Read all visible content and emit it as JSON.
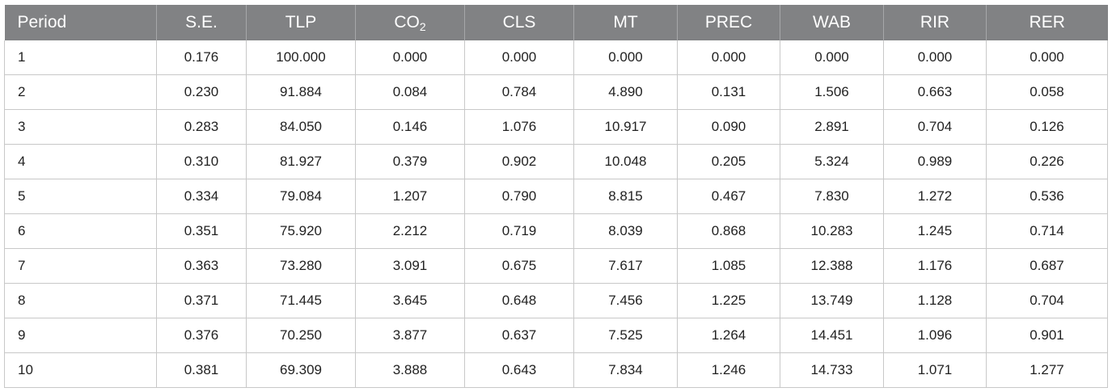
{
  "table": {
    "headers": [
      {
        "main": "Period",
        "sub": ""
      },
      {
        "main": "S.E.",
        "sub": ""
      },
      {
        "main": "TLP",
        "sub": ""
      },
      {
        "main": "CO",
        "sub": "2"
      },
      {
        "main": "CLS",
        "sub": ""
      },
      {
        "main": "MT",
        "sub": ""
      },
      {
        "main": "PREC",
        "sub": ""
      },
      {
        "main": "WAB",
        "sub": ""
      },
      {
        "main": "RIR",
        "sub": ""
      },
      {
        "main": "RER",
        "sub": ""
      }
    ],
    "rows": [
      [
        "1",
        "0.176",
        "100.000",
        "0.000",
        "0.000",
        "0.000",
        "0.000",
        "0.000",
        "0.000",
        "0.000"
      ],
      [
        "2",
        "0.230",
        "91.884",
        "0.084",
        "0.784",
        "4.890",
        "0.131",
        "1.506",
        "0.663",
        "0.058"
      ],
      [
        "3",
        "0.283",
        "84.050",
        "0.146",
        "1.076",
        "10.917",
        "0.090",
        "2.891",
        "0.704",
        "0.126"
      ],
      [
        "4",
        "0.310",
        "81.927",
        "0.379",
        "0.902",
        "10.048",
        "0.205",
        "5.324",
        "0.989",
        "0.226"
      ],
      [
        "5",
        "0.334",
        "79.084",
        "1.207",
        "0.790",
        "8.815",
        "0.467",
        "7.830",
        "1.272",
        "0.536"
      ],
      [
        "6",
        "0.351",
        "75.920",
        "2.212",
        "0.719",
        "8.039",
        "0.868",
        "10.283",
        "1.245",
        "0.714"
      ],
      [
        "7",
        "0.363",
        "73.280",
        "3.091",
        "0.675",
        "7.617",
        "1.085",
        "12.388",
        "1.176",
        "0.687"
      ],
      [
        "8",
        "0.371",
        "71.445",
        "3.645",
        "0.648",
        "7.456",
        "1.225",
        "13.749",
        "1.128",
        "0.704"
      ],
      [
        "9",
        "0.376",
        "70.250",
        "3.877",
        "0.637",
        "7.525",
        "1.264",
        "14.451",
        "1.096",
        "0.901"
      ],
      [
        "10",
        "0.381",
        "69.309",
        "3.888",
        "0.643",
        "7.834",
        "1.246",
        "14.733",
        "1.071",
        "1.277"
      ]
    ]
  }
}
